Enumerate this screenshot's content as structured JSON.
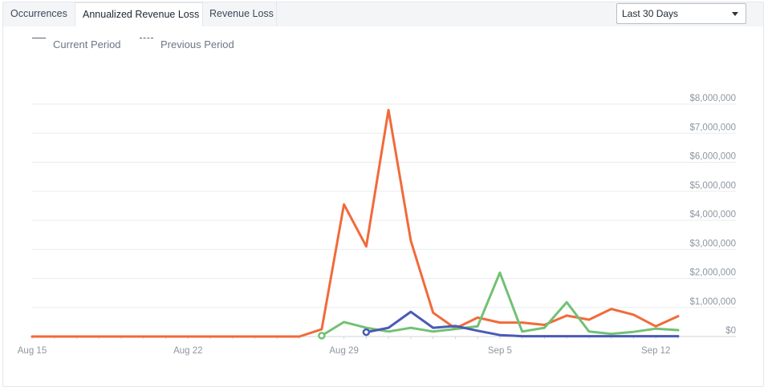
{
  "tabs": [
    {
      "label": "Occurrences",
      "active": false
    },
    {
      "label": "Annualized Revenue Loss",
      "active": true
    },
    {
      "label": "Revenue Loss",
      "active": false
    }
  ],
  "period_select": {
    "value": "Last 30 Days"
  },
  "legend": {
    "current": "Current Period",
    "previous": "Previous Period"
  },
  "colors": {
    "orange": "#f26a3a",
    "green": "#72c174",
    "blue": "#4b5ab5",
    "grid": "#e8ebee"
  },
  "chart_data": {
    "type": "line",
    "x_ticks": [
      "Aug 15",
      "Aug 22",
      "Aug 29",
      "Sep 5",
      "Sep 12"
    ],
    "x_tick_days": [
      0,
      7,
      14,
      21,
      28
    ],
    "y_ticks": [
      "$0",
      "$1,000,000",
      "$2,000,000",
      "$3,000,000",
      "$4,000,000",
      "$5,000,000",
      "$6,000,000",
      "$7,000,000",
      "$8,000,000"
    ],
    "ylim": [
      0,
      8000000
    ],
    "series": [
      {
        "color": "orange",
        "x": [
          0,
          1,
          2,
          3,
          4,
          5,
          6,
          7,
          8,
          9,
          10,
          11,
          12,
          13,
          14,
          15,
          16,
          17,
          18,
          19,
          20,
          21,
          22,
          23,
          24,
          25,
          26,
          27,
          28,
          29
        ],
        "values": [
          0,
          0,
          0,
          0,
          0,
          0,
          0,
          0,
          0,
          0,
          0,
          0,
          0,
          250000,
          4550000,
          3100000,
          7800000,
          3300000,
          820000,
          280000,
          650000,
          480000,
          480000,
          400000,
          720000,
          580000,
          950000,
          750000,
          350000,
          700000
        ]
      },
      {
        "color": "green",
        "x": [
          13,
          14,
          15,
          16,
          17,
          18,
          19,
          20,
          21,
          22,
          23,
          24,
          25,
          26,
          27,
          28,
          29
        ],
        "values": [
          30000,
          500000,
          300000,
          170000,
          300000,
          170000,
          260000,
          350000,
          2200000,
          170000,
          300000,
          1180000,
          170000,
          90000,
          160000,
          270000,
          220000
        ]
      },
      {
        "color": "blue",
        "x": [
          15,
          16,
          17,
          18,
          19,
          20,
          21,
          22,
          23,
          24,
          25,
          26,
          27,
          28,
          29
        ],
        "values": [
          150000,
          300000,
          850000,
          300000,
          360000,
          200000,
          50000,
          10000,
          10000,
          10000,
          10000,
          10000,
          10000,
          10000,
          10000
        ]
      }
    ]
  }
}
